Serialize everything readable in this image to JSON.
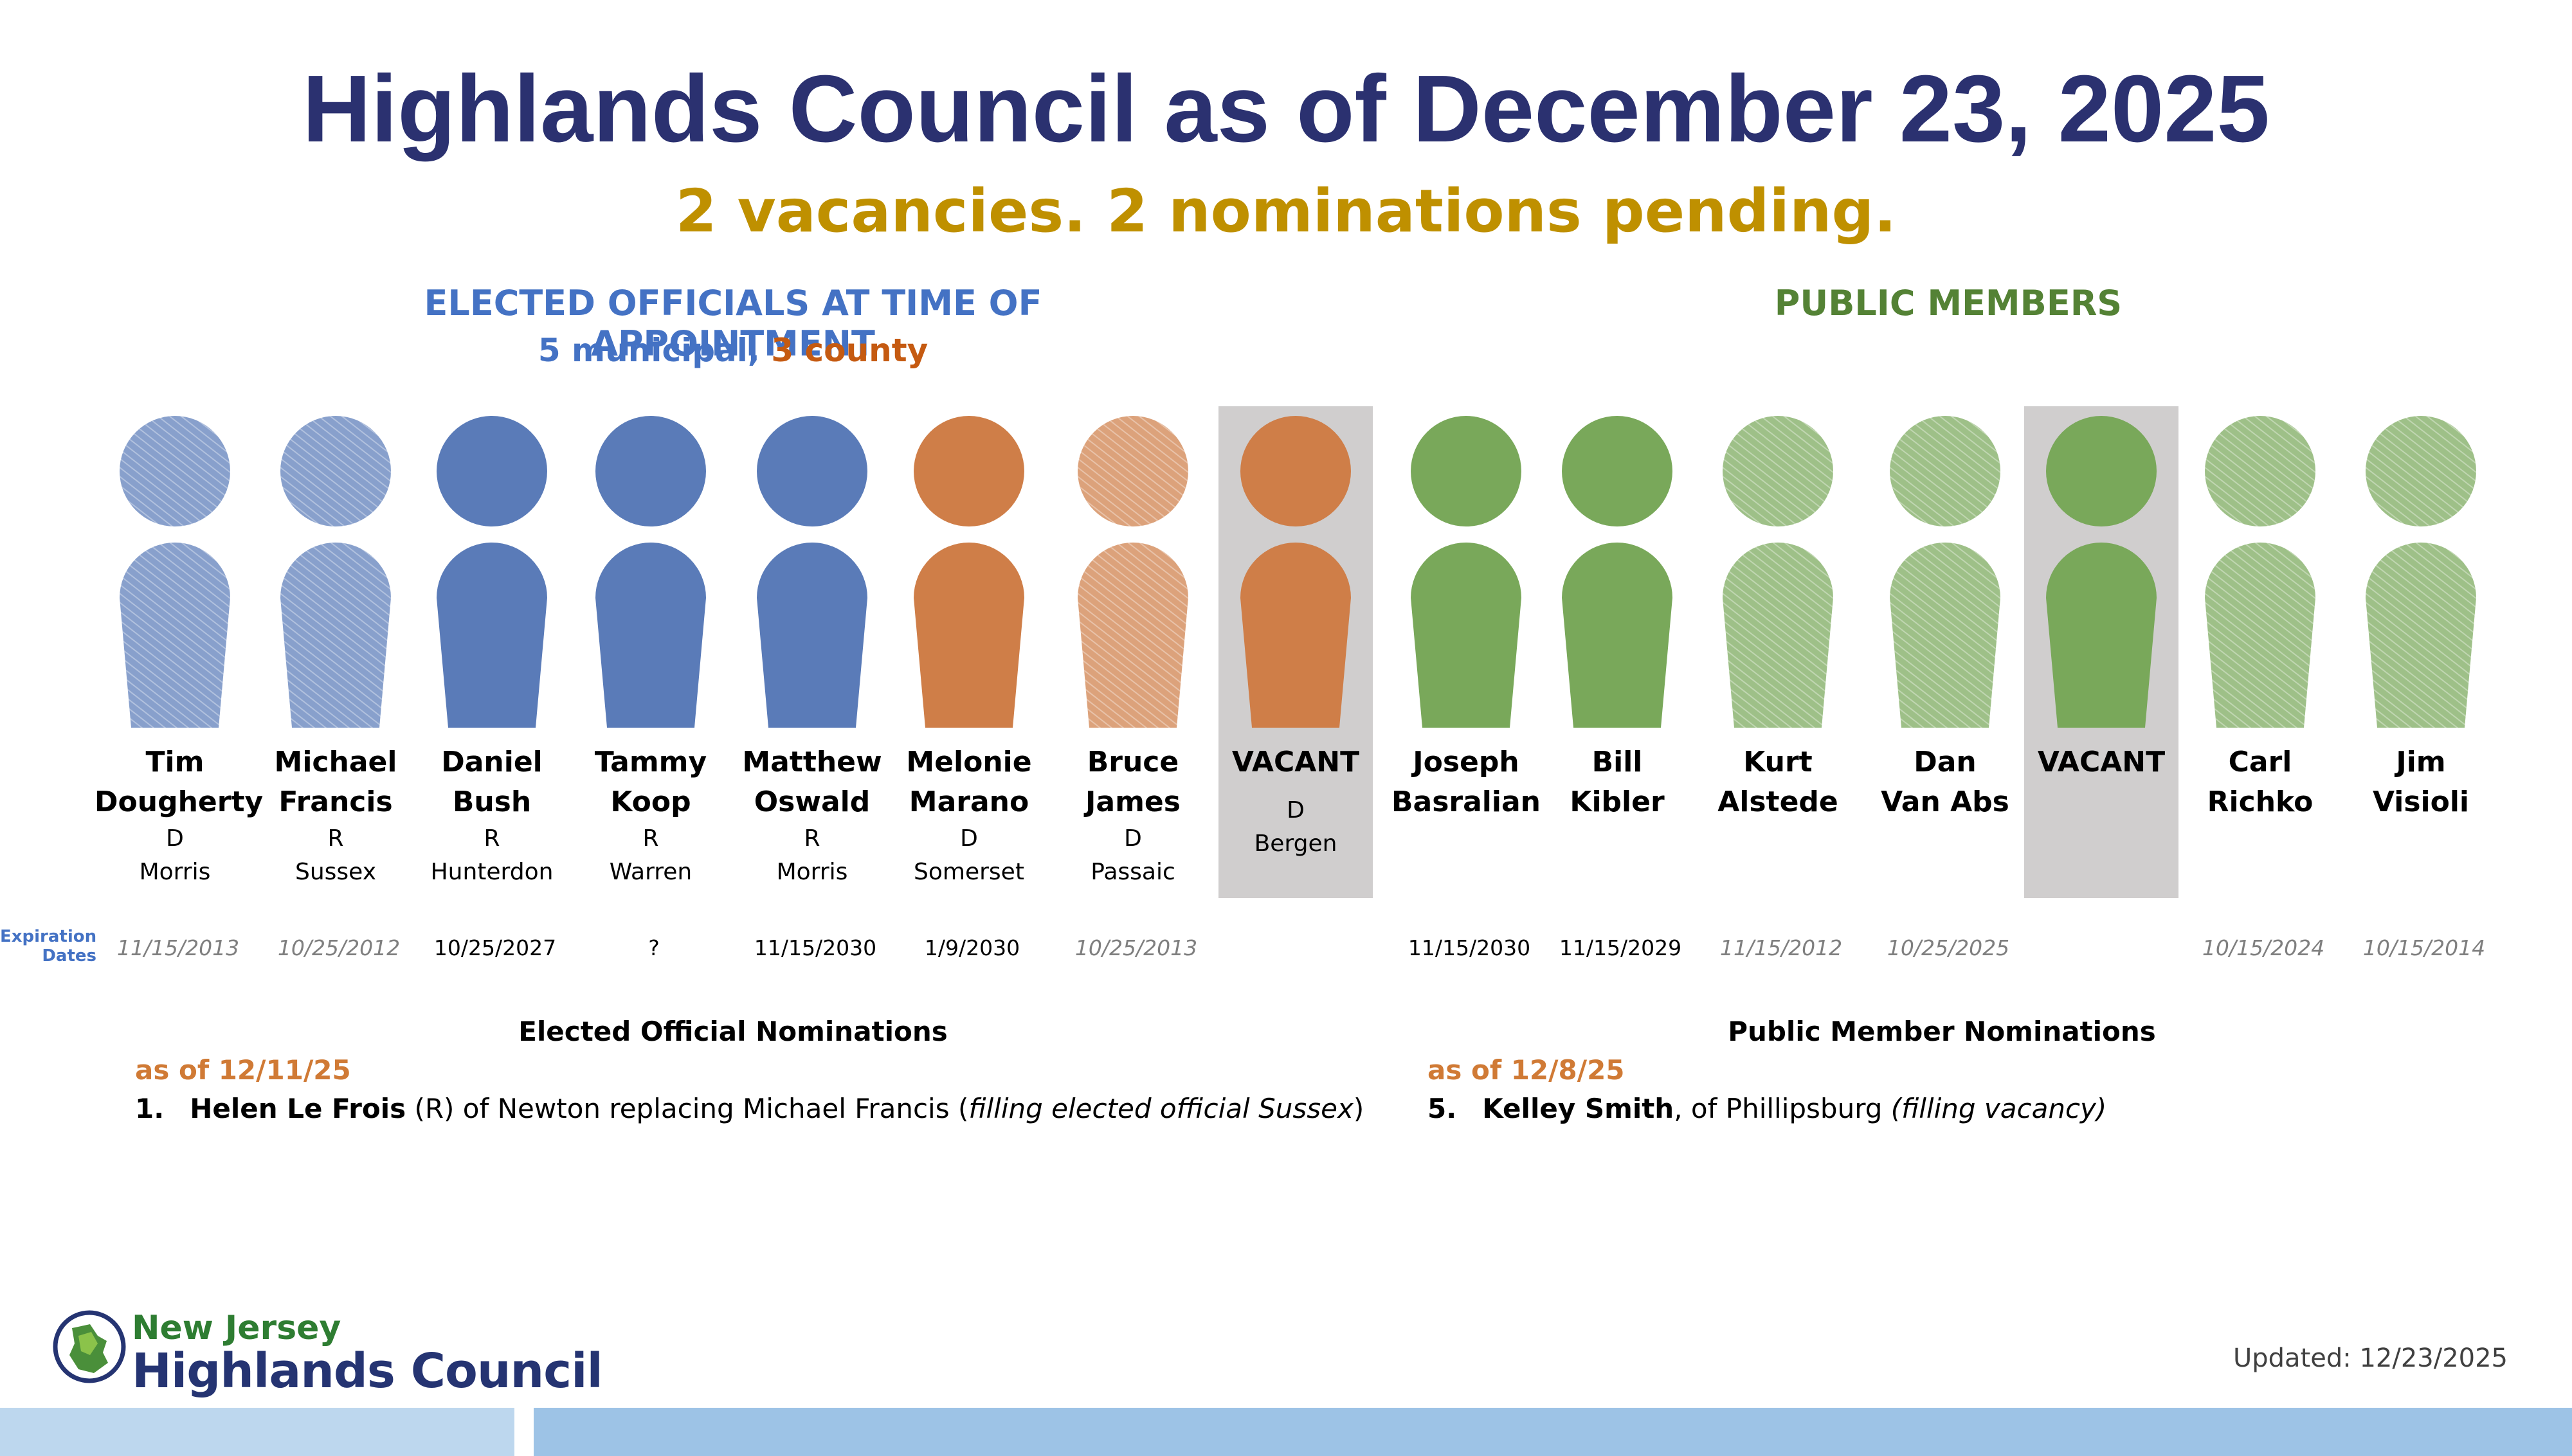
{
  "header": {
    "title": "Highlands Council as of December 23, 2025",
    "subtitle": "2 vacancies. 2 nominations pending."
  },
  "sections": {
    "elected_title": "ELECTED OFFICIALS AT TIME OF APPOINTMENT",
    "elected_sub_municipal": "5 municipal,",
    "elected_sub_county": "3 county",
    "public_title": "PUBLIC MEMBERS"
  },
  "colors": {
    "municipal": "#5a7bb8",
    "county": "#cf7e48",
    "public": "#79a85a",
    "vacant_bg": "#d0cece"
  },
  "expiration_label_1": "Expiration",
  "expiration_label_2": "Dates",
  "members": [
    {
      "name1": "Tim",
      "name2": "Dougherty",
      "party": "D",
      "county": "Morris",
      "expiration": "11/15/2013",
      "expired": true,
      "group": "municipal",
      "textured": true,
      "vacant": false
    },
    {
      "name1": "Michael",
      "name2": "Francis",
      "party": "R",
      "county": "Sussex",
      "expiration": "10/25/2012",
      "expired": true,
      "group": "municipal",
      "textured": true,
      "vacant": false
    },
    {
      "name1": "Daniel",
      "name2": "Bush",
      "party": "R",
      "county": "Hunterdon",
      "expiration": "10/25/2027",
      "expired": false,
      "group": "municipal",
      "textured": false,
      "vacant": false
    },
    {
      "name1": "Tammy",
      "name2": "Koop",
      "party": "R",
      "county": "Warren",
      "expiration": "?",
      "expired": false,
      "group": "municipal",
      "textured": false,
      "vacant": false
    },
    {
      "name1": "Matthew",
      "name2": "Oswald",
      "party": "R",
      "county": "Morris",
      "expiration": "11/15/2030",
      "expired": false,
      "group": "municipal",
      "textured": false,
      "vacant": false
    },
    {
      "name1": "Melonie",
      "name2": "Marano",
      "party": "D",
      "county": "Somerset",
      "expiration": "1/9/2030",
      "expired": false,
      "group": "county",
      "textured": false,
      "vacant": false
    },
    {
      "name1": "Bruce",
      "name2": "James",
      "party": "D",
      "county": "Passaic",
      "expiration": "10/25/2013",
      "expired": true,
      "group": "county",
      "textured": true,
      "vacant": false
    },
    {
      "name1": "VACANT",
      "name2": "",
      "party": "D",
      "county": "Bergen",
      "expiration": "",
      "expired": false,
      "group": "county",
      "textured": false,
      "vacant": true
    },
    {
      "name1": "Joseph",
      "name2": "Basralian",
      "party": "",
      "county": "",
      "expiration": "11/15/2030",
      "expired": false,
      "group": "public",
      "textured": false,
      "vacant": false
    },
    {
      "name1": "Bill",
      "name2": "Kibler",
      "party": "",
      "county": "",
      "expiration": "11/15/2029",
      "expired": false,
      "group": "public",
      "textured": false,
      "vacant": false
    },
    {
      "name1": "Kurt",
      "name2": "Alstede",
      "party": "",
      "county": "",
      "expiration": "11/15/2012",
      "expired": true,
      "group": "public",
      "textured": true,
      "vacant": false
    },
    {
      "name1": "Dan",
      "name2": "Van Abs",
      "party": "",
      "county": "",
      "expiration": "10/25/2025",
      "expired": true,
      "group": "public",
      "textured": true,
      "vacant": false
    },
    {
      "name1": "VACANT",
      "name2": "",
      "party": "",
      "county": "",
      "expiration": "",
      "expired": false,
      "group": "public",
      "textured": false,
      "vacant": true
    },
    {
      "name1": "Carl",
      "name2": "Richko",
      "party": "",
      "county": "",
      "expiration": "10/15/2024",
      "expired": true,
      "group": "public",
      "textured": true,
      "vacant": false
    },
    {
      "name1": "Jim",
      "name2": "Visioli",
      "party": "",
      "county": "",
      "expiration": "10/15/2014",
      "expired": true,
      "group": "public",
      "textured": true,
      "vacant": false
    }
  ],
  "nominations": {
    "elected": {
      "heading": "Elected Official Nominations",
      "as_of": "as of 12/11/25",
      "num": "1.",
      "nominee": "Helen Le Frois",
      "t1": " (R) of Newton replacing Michael Francis (",
      "t2": "filling elected official Sussex",
      "t3": ")"
    },
    "public": {
      "heading": "Public Member Nominations",
      "as_of": "as of 12/8/25",
      "num": "5.",
      "nominee": "Kelley Smith",
      "t1": ", of Phillipsburg ",
      "t2": "(filling vacancy)"
    }
  },
  "footer": {
    "logo_line1": "New Jersey",
    "logo_line2": "Highlands Council",
    "updated": "Updated: 12/23/2025"
  }
}
